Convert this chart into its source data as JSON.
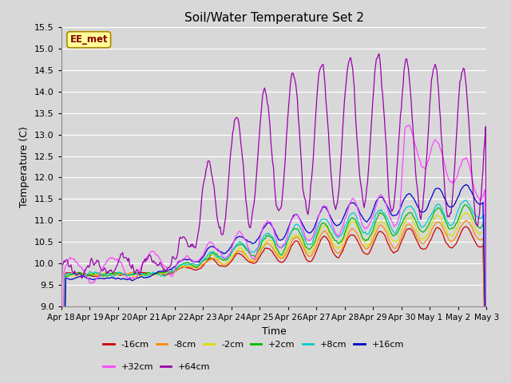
{
  "title": "Soil/Water Temperature Set 2",
  "xlabel": "Time",
  "ylabel": "Temperature (C)",
  "ylim": [
    9.0,
    15.5
  ],
  "background_color": "#d8d8d8",
  "annotation": "EE_met",
  "series": [
    {
      "label": "-16cm",
      "color": "#cc0000"
    },
    {
      "label": "-8cm",
      "color": "#ff8800"
    },
    {
      "label": "-2cm",
      "color": "#dddd00"
    },
    {
      "label": "+2cm",
      "color": "#00bb00"
    },
    {
      "label": "+8cm",
      "color": "#00cccc"
    },
    {
      "label": "+16cm",
      "color": "#0000cc"
    },
    {
      "label": "+32cm",
      "color": "#ff44ff"
    },
    {
      "label": "+64cm",
      "color": "#9900aa"
    }
  ],
  "xtick_labels": [
    "Apr 18",
    "Apr 19",
    "Apr 20",
    "Apr 21",
    "Apr 22",
    "Apr 23",
    "Apr 24",
    "Apr 25",
    "Apr 26",
    "Apr 27",
    "Apr 28",
    "Apr 29",
    "Apr 30",
    "May 1",
    "May 2",
    "May 3"
  ],
  "yticks": [
    9.0,
    9.5,
    10.0,
    10.5,
    11.0,
    11.5,
    12.0,
    12.5,
    13.0,
    13.5,
    14.0,
    14.5,
    15.0,
    15.5
  ],
  "num_points": 480,
  "seed": 12345
}
